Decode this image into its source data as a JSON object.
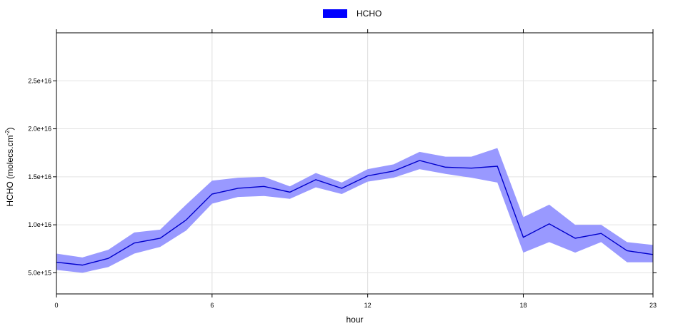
{
  "chart_data": {
    "type": "line",
    "title": "",
    "xlabel": "hour",
    "ylabel": "HCHO (molecs.cm",
    "ylabel_superscript": "-2",
    "ylabel_close": ")",
    "legend": {
      "label": "HCHO",
      "color": "#0000ff",
      "placement": "top-center"
    },
    "x": [
      0,
      1,
      2,
      3,
      4,
      5,
      6,
      7,
      8,
      9,
      10,
      11,
      12,
      13,
      14,
      15,
      16,
      17,
      18,
      19,
      20,
      21,
      22,
      23
    ],
    "series": [
      {
        "name": "HCHO",
        "color": "#0000cc",
        "values": [
          6100000000000000.0,
          5800000000000000.0,
          6500000000000000.0,
          8100000000000000.0,
          8600000000000000.0,
          1.05e+16,
          1.32e+16,
          1.38e+16,
          1.4e+16,
          1.34e+16,
          1.47e+16,
          1.38e+16,
          1.51e+16,
          1.56e+16,
          1.67e+16,
          1.6e+16,
          1.59e+16,
          1.61e+16,
          8700000000000000.0,
          1.01e+16,
          8600000000000000.0,
          9100000000000000.0,
          7300000000000000.0,
          6900000000000000.0
        ],
        "lower": [
          5300000000000000.0,
          5000000000000000.0,
          5600000000000000.0,
          7000000000000000.0,
          7700000000000000.0,
          9400000000000000.0,
          1.22e+16,
          1.29e+16,
          1.3e+16,
          1.27e+16,
          1.39e+16,
          1.32e+16,
          1.45e+16,
          1.49e+16,
          1.58e+16,
          1.53e+16,
          1.49e+16,
          1.44e+16,
          7100000000000000.0,
          8200000000000000.0,
          7100000000000000.0,
          8200000000000000.0,
          6100000000000000.0,
          6100000000000000.0
        ],
        "upper": [
          7000000000000000.0,
          6600000000000000.0,
          7400000000000000.0,
          9200000000000000.0,
          9500000000000000.0,
          1.21e+16,
          1.46e+16,
          1.49e+16,
          1.5e+16,
          1.4e+16,
          1.54e+16,
          1.44e+16,
          1.58e+16,
          1.63e+16,
          1.76e+16,
          1.71e+16,
          1.71e+16,
          1.8e+16,
          1.08e+16,
          1.21e+16,
          1e+16,
          1e+16,
          8200000000000000.0,
          7900000000000000.0
        ],
        "band_color": "#9999ff"
      }
    ],
    "xlim": [
      0,
      23
    ],
    "ylim": [
      2800000000000000.0,
      3e+16
    ],
    "xticks": [
      0,
      6,
      12,
      18,
      23
    ],
    "xtick_labels": [
      "0",
      "6",
      "12",
      "18",
      "23"
    ],
    "yticks": [
      5000000000000000.0,
      1e+16,
      1.5e+16,
      2e+16,
      2.5e+16
    ],
    "ytick_labels": [
      "5.0e+15",
      "1.0e+16",
      "1.5e+16",
      "2.0e+16",
      "2.5e+16"
    ],
    "grid": true
  }
}
